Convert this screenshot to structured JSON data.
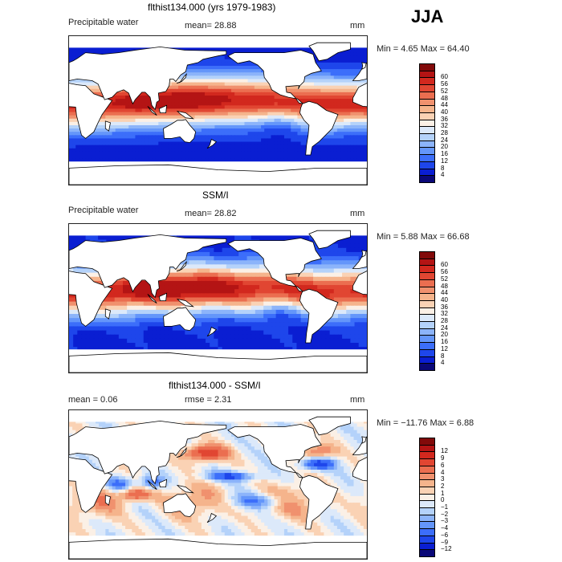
{
  "season": "JJA",
  "colors": {
    "abs_scale": [
      "#0a0878",
      "#0a1ed2",
      "#1e46eb",
      "#3c6efa",
      "#6496fa",
      "#8cb4fa",
      "#b4d2fa",
      "#dce9fa",
      "#fbf0e6",
      "#fad2b4",
      "#f5b48c",
      "#f0916e",
      "#eb6e50",
      "#e14632",
      "#d2281e",
      "#b41414",
      "#820a0a"
    ],
    "diff_scale": [
      "#0a0878",
      "#0a1ed2",
      "#1e46eb",
      "#3c6efa",
      "#6496fa",
      "#8cb4fa",
      "#b4d2fa",
      "#dce9fa",
      "#fbf0e6",
      "#fad2b4",
      "#f5b48c",
      "#f0916e",
      "#eb6e50",
      "#e14632",
      "#d2281e",
      "#b41414",
      "#820a0a"
    ],
    "land": "#ffffff",
    "coast": "#000000"
  },
  "panels": [
    {
      "title": "flthist134.000 (yrs 1979-1983)",
      "left_label": "Precipitable water",
      "mid_label": "mean=  28.88",
      "unit": "mm",
      "minmax": "Min =    4.65  Max =   64.40",
      "mode": "model"
    },
    {
      "title": "SSM/I",
      "left_label": "Precipitable water",
      "mid_label": "mean=  28.82",
      "unit": "mm",
      "minmax": "Min =    5.88  Max =   66.68",
      "mode": "obs"
    },
    {
      "title": "flthist134.000 - SSM/I",
      "left_label": "mean =    0.06",
      "mid_label": "rmse =    2.31",
      "unit": "mm",
      "minmax": "Min = −11.76  Max =    6.88",
      "mode": "diff"
    }
  ],
  "chart_data": [
    {
      "type": "heatmap",
      "title": "flthist134.000 (yrs 1979-1983)",
      "variable": "Precipitable water",
      "unit": "mm",
      "mean": 28.88,
      "min": 4.65,
      "max": 64.4,
      "colorbar_levels": [
        4,
        8,
        12,
        16,
        20,
        24,
        28,
        32,
        36,
        40,
        44,
        48,
        52,
        56,
        60
      ],
      "colorbar_labels": [
        "4",
        "8",
        "12",
        "16",
        "20",
        "24",
        "28",
        "32",
        "36",
        "40",
        "44",
        "48",
        "52",
        "56",
        "60"
      ]
    },
    {
      "type": "heatmap",
      "title": "SSM/I",
      "variable": "Precipitable water",
      "unit": "mm",
      "mean": 28.82,
      "min": 5.88,
      "max": 66.68,
      "colorbar_levels": [
        4,
        8,
        12,
        16,
        20,
        24,
        28,
        32,
        36,
        40,
        44,
        48,
        52,
        56,
        60
      ],
      "colorbar_labels": [
        "4",
        "8",
        "12",
        "16",
        "20",
        "24",
        "28",
        "32",
        "36",
        "40",
        "44",
        "48",
        "52",
        "56",
        "60"
      ]
    },
    {
      "type": "heatmap",
      "title": "flthist134.000 - SSM/I",
      "unit": "mm",
      "mean": 0.06,
      "rmse": 2.31,
      "min": -11.76,
      "max": 6.88,
      "colorbar_levels": [
        -12,
        -9,
        -6,
        -4,
        -3,
        -2,
        -1,
        0,
        1,
        2,
        3,
        4,
        6,
        9,
        12
      ],
      "colorbar_labels": [
        "−12",
        "−9",
        "−6",
        "−4",
        "−3",
        "−2",
        "−1",
        "0",
        "1",
        "2",
        "3",
        "4",
        "6",
        "9",
        "12"
      ]
    }
  ]
}
